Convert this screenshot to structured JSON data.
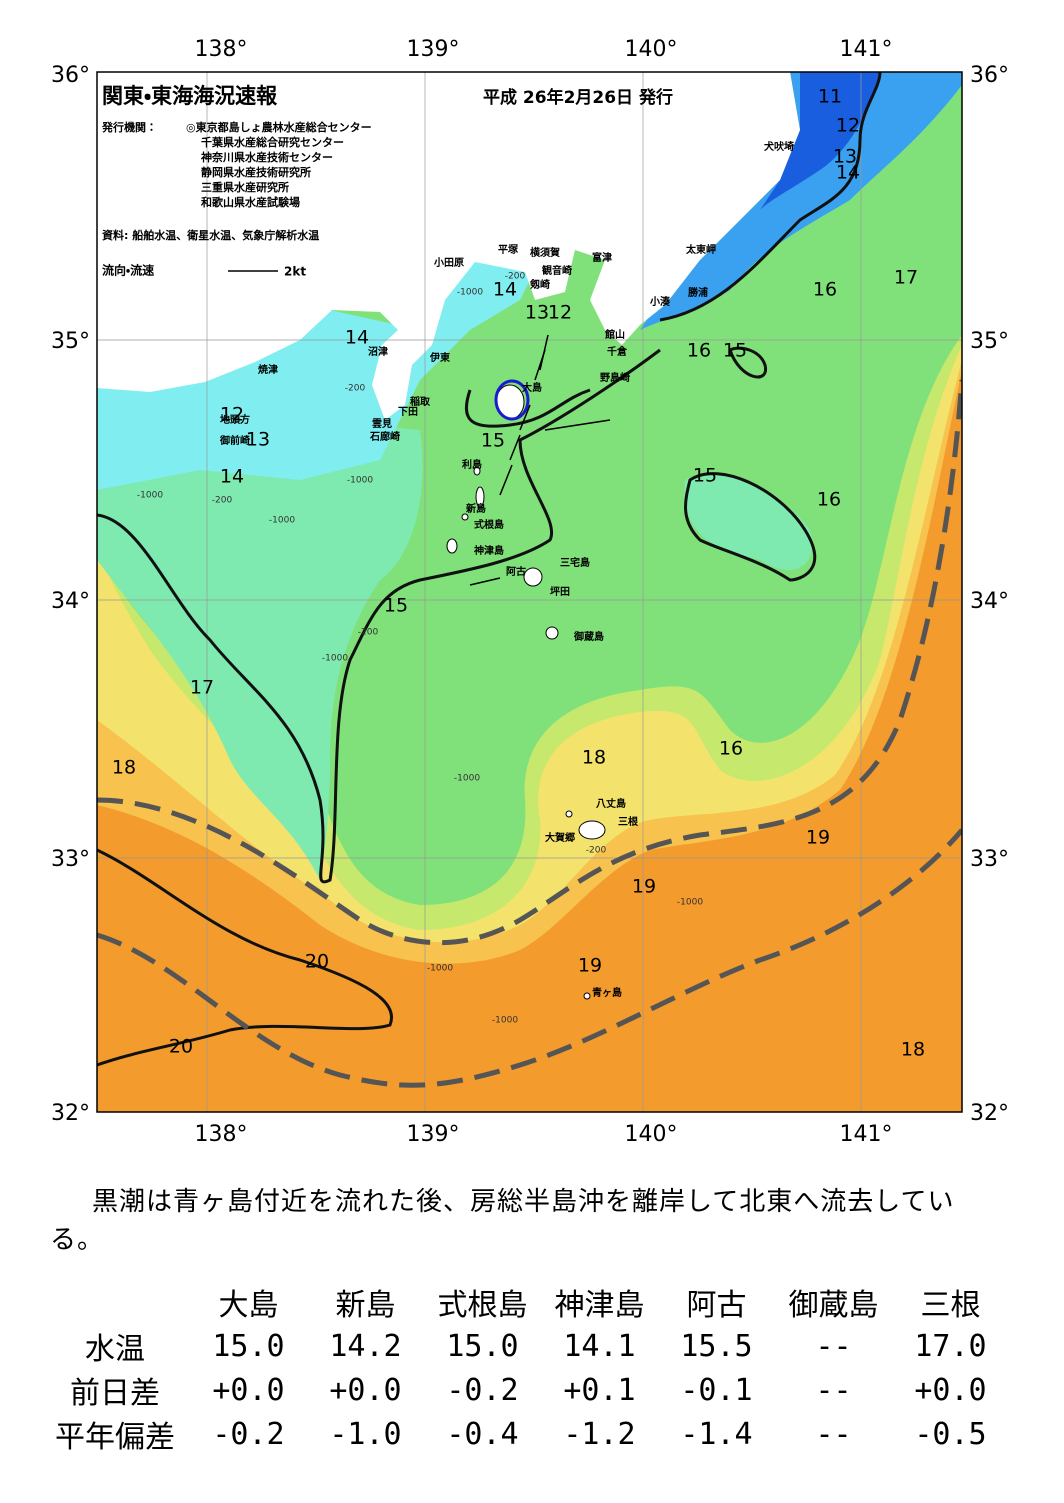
{
  "header": {
    "title": "関東・東海海況速報",
    "date": "平成 26年2月26日 発行",
    "issuer_label": "発行機関：",
    "issuers": [
      "◎東京都島しょ農林水産総合センター",
      "千葉県水産総合研究センター",
      "神奈川県水産技術センター",
      "静岡県水産技術研究所",
      "三重県水産研究所",
      "和歌山県水産試験場"
    ],
    "source": "資料: 船舶水温、衛星水温、気象庁解析水温",
    "current_legend": "流向・流速",
    "current_scale": "2kt"
  },
  "map": {
    "longitude_labels": [
      "138°",
      "139°",
      "140°",
      "141°"
    ],
    "latitude_labels": [
      "36°",
      "35°",
      "34°",
      "33°",
      "32°"
    ],
    "places": [
      "犬吠埼",
      "太東岬",
      "勝浦",
      "小湊",
      "富津",
      "横須賀",
      "観音崎",
      "平塚",
      "小田原",
      "剱崎",
      "館山",
      "千倉",
      "野島崎",
      "大島",
      "伊東",
      "沼津",
      "焼津",
      "稲取",
      "下田",
      "雲見",
      "石廊崎",
      "地頭方",
      "御前崎",
      "利島",
      "新島",
      "式根島",
      "神津島",
      "三宅島",
      "阿古",
      "坪田",
      "御蔵島",
      "八丈島",
      "三根",
      "大賀郷",
      "青ヶ島"
    ],
    "isotherm_labels": [
      "11",
      "12",
      "13",
      "14",
      "17",
      "16",
      "16",
      "15",
      "14",
      "13",
      "12",
      "14",
      "12",
      "13",
      "14",
      "15",
      "15",
      "16",
      "15",
      "17",
      "18",
      "18",
      "16",
      "19",
      "19",
      "20",
      "19",
      "20",
      "18"
    ],
    "depth_labels": [
      "-200",
      "-1000",
      "-200",
      "-1000",
      "-200",
      "-1000",
      "-1000",
      "-200",
      "-1000",
      "-1000",
      "-1000",
      "-1000",
      "-1000",
      "-200"
    ]
  },
  "summary": "黒潮は青ヶ島付近を流れた後、房総半島沖を離岸して北東へ流去している。",
  "table": {
    "columns": [
      "大島",
      "新島",
      "式根島",
      "神津島",
      "阿古",
      "御蔵島",
      "三根"
    ],
    "rows": [
      [
        "水温",
        "15.0",
        "14.2",
        "15.0",
        "14.1",
        "15.5",
        "--",
        "17.0"
      ],
      [
        "前日差",
        "+0.0",
        "+0.0",
        "-0.2",
        "+0.1",
        "-0.1",
        "--",
        "+0.0"
      ],
      [
        "平年偏差",
        "-0.2",
        "-1.0",
        "-0.4",
        "-1.2",
        "-1.4",
        "--",
        "-0.5"
      ]
    ]
  }
}
